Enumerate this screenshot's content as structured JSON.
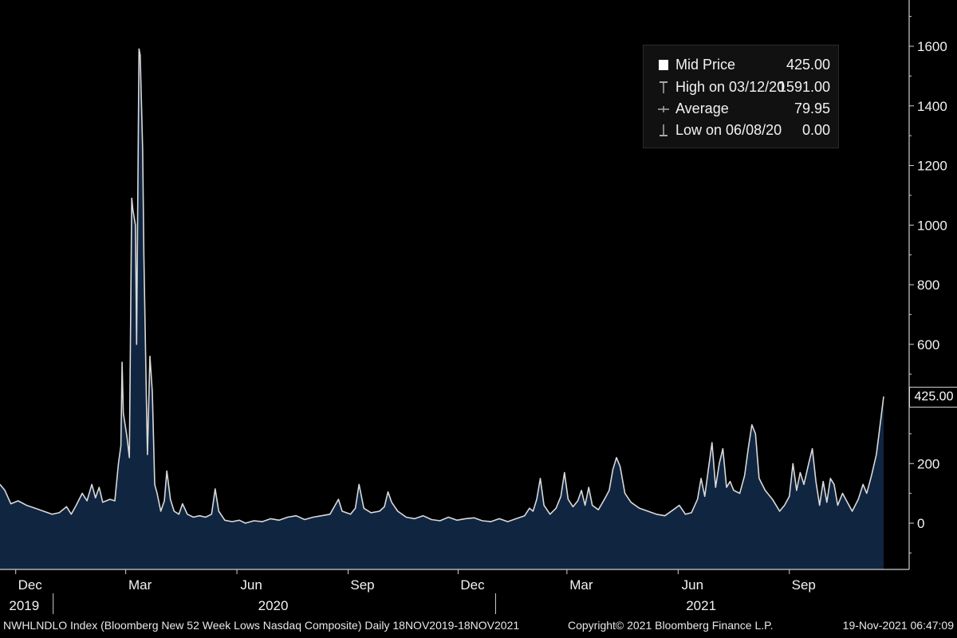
{
  "chart_data": {
    "type": "area",
    "x_range": [
      "2019-11-18",
      "2021-11-18"
    ],
    "ylim": [
      -160,
      1750
    ],
    "yticks": [
      0,
      200,
      400,
      600,
      800,
      1000,
      1200,
      1400,
      1600
    ],
    "ytick_labels": [
      "0",
      "200",
      "",
      "600",
      "800",
      "1000",
      "1200",
      "1400",
      "1600"
    ],
    "x_month_labels": [
      {
        "date": "2019-12-01",
        "label": "Dec"
      },
      {
        "date": "2020-03-01",
        "label": "Mar"
      },
      {
        "date": "2020-06-01",
        "label": "Jun"
      },
      {
        "date": "2020-09-01",
        "label": "Sep"
      },
      {
        "date": "2020-12-01",
        "label": "Dec"
      },
      {
        "date": "2021-03-01",
        "label": "Mar"
      },
      {
        "date": "2021-06-01",
        "label": "Jun"
      },
      {
        "date": "2021-09-01",
        "label": "Sep"
      }
    ],
    "x_year_labels": [
      {
        "date": "2019-12-08",
        "label": "2019"
      },
      {
        "date": "2020-07-01",
        "label": "2020"
      },
      {
        "date": "2021-06-20",
        "label": "2021"
      }
    ],
    "points": [
      [
        "2019-11-18",
        130
      ],
      [
        "2019-11-22",
        110
      ],
      [
        "2019-11-27",
        65
      ],
      [
        "2019-12-03",
        75
      ],
      [
        "2019-12-10",
        60
      ],
      [
        "2019-12-17",
        50
      ],
      [
        "2019-12-24",
        40
      ],
      [
        "2019-12-31",
        30
      ],
      [
        "2020-01-06",
        35
      ],
      [
        "2020-01-12",
        55
      ],
      [
        "2020-01-16",
        30
      ],
      [
        "2020-01-20",
        60
      ],
      [
        "2020-01-25",
        100
      ],
      [
        "2020-01-29",
        75
      ],
      [
        "2020-02-02",
        130
      ],
      [
        "2020-02-05",
        85
      ],
      [
        "2020-02-08",
        120
      ],
      [
        "2020-02-11",
        70
      ],
      [
        "2020-02-17",
        80
      ],
      [
        "2020-02-21",
        75
      ],
      [
        "2020-02-24",
        200
      ],
      [
        "2020-02-26",
        260
      ],
      [
        "2020-02-27",
        540
      ],
      [
        "2020-02-28",
        370
      ],
      [
        "2020-03-02",
        290
      ],
      [
        "2020-03-04",
        220
      ],
      [
        "2020-03-06",
        1090
      ],
      [
        "2020-03-07",
        1050
      ],
      [
        "2020-03-09",
        1000
      ],
      [
        "2020-03-10",
        600
      ],
      [
        "2020-03-12",
        1591
      ],
      [
        "2020-03-13",
        1570
      ],
      [
        "2020-03-15",
        1250
      ],
      [
        "2020-03-16",
        900
      ],
      [
        "2020-03-18",
        440
      ],
      [
        "2020-03-19",
        230
      ],
      [
        "2020-03-21",
        560
      ],
      [
        "2020-03-23",
        440
      ],
      [
        "2020-03-25",
        130
      ],
      [
        "2020-03-27",
        100
      ],
      [
        "2020-03-30",
        40
      ],
      [
        "2020-04-02",
        75
      ],
      [
        "2020-04-04",
        175
      ],
      [
        "2020-04-07",
        80
      ],
      [
        "2020-04-10",
        40
      ],
      [
        "2020-04-14",
        30
      ],
      [
        "2020-04-17",
        65
      ],
      [
        "2020-04-21",
        30
      ],
      [
        "2020-04-26",
        20
      ],
      [
        "2020-05-01",
        25
      ],
      [
        "2020-05-06",
        20
      ],
      [
        "2020-05-11",
        30
      ],
      [
        "2020-05-14",
        115
      ],
      [
        "2020-05-17",
        40
      ],
      [
        "2020-05-22",
        10
      ],
      [
        "2020-05-28",
        5
      ],
      [
        "2020-06-03",
        10
      ],
      [
        "2020-06-08",
        0
      ],
      [
        "2020-06-15",
        8
      ],
      [
        "2020-06-22",
        5
      ],
      [
        "2020-06-29",
        15
      ],
      [
        "2020-07-06",
        10
      ],
      [
        "2020-07-13",
        20
      ],
      [
        "2020-07-20",
        25
      ],
      [
        "2020-07-27",
        12
      ],
      [
        "2020-08-03",
        20
      ],
      [
        "2020-08-10",
        25
      ],
      [
        "2020-08-17",
        30
      ],
      [
        "2020-08-24",
        80
      ],
      [
        "2020-08-27",
        40
      ],
      [
        "2020-09-03",
        30
      ],
      [
        "2020-09-07",
        50
      ],
      [
        "2020-09-10",
        130
      ],
      [
        "2020-09-14",
        50
      ],
      [
        "2020-09-20",
        35
      ],
      [
        "2020-09-27",
        40
      ],
      [
        "2020-10-01",
        55
      ],
      [
        "2020-10-04",
        105
      ],
      [
        "2020-10-07",
        70
      ],
      [
        "2020-10-12",
        40
      ],
      [
        "2020-10-19",
        20
      ],
      [
        "2020-10-26",
        15
      ],
      [
        "2020-11-02",
        25
      ],
      [
        "2020-11-09",
        12
      ],
      [
        "2020-11-16",
        8
      ],
      [
        "2020-11-23",
        20
      ],
      [
        "2020-11-30",
        10
      ],
      [
        "2020-12-07",
        15
      ],
      [
        "2020-12-14",
        18
      ],
      [
        "2020-12-21",
        8
      ],
      [
        "2020-12-28",
        5
      ],
      [
        "2021-01-04",
        15
      ],
      [
        "2021-01-11",
        5
      ],
      [
        "2021-01-18",
        15
      ],
      [
        "2021-01-25",
        25
      ],
      [
        "2021-01-29",
        50
      ],
      [
        "2021-02-01",
        40
      ],
      [
        "2021-02-04",
        80
      ],
      [
        "2021-02-07",
        150
      ],
      [
        "2021-02-10",
        60
      ],
      [
        "2021-02-15",
        30
      ],
      [
        "2021-02-20",
        50
      ],
      [
        "2021-02-24",
        90
      ],
      [
        "2021-02-27",
        170
      ],
      [
        "2021-03-02",
        80
      ],
      [
        "2021-03-06",
        55
      ],
      [
        "2021-03-10",
        75
      ],
      [
        "2021-03-13",
        110
      ],
      [
        "2021-03-16",
        60
      ],
      [
        "2021-03-19",
        120
      ],
      [
        "2021-03-22",
        60
      ],
      [
        "2021-03-27",
        45
      ],
      [
        "2021-04-01",
        80
      ],
      [
        "2021-04-05",
        110
      ],
      [
        "2021-04-08",
        180
      ],
      [
        "2021-04-11",
        220
      ],
      [
        "2021-04-14",
        190
      ],
      [
        "2021-04-18",
        100
      ],
      [
        "2021-04-23",
        70
      ],
      [
        "2021-04-30",
        50
      ],
      [
        "2021-05-07",
        40
      ],
      [
        "2021-05-14",
        30
      ],
      [
        "2021-05-21",
        25
      ],
      [
        "2021-05-28",
        45
      ],
      [
        "2021-06-02",
        60
      ],
      [
        "2021-06-07",
        30
      ],
      [
        "2021-06-12",
        35
      ],
      [
        "2021-06-17",
        80
      ],
      [
        "2021-06-20",
        150
      ],
      [
        "2021-06-23",
        90
      ],
      [
        "2021-06-26",
        180
      ],
      [
        "2021-06-29",
        270
      ],
      [
        "2021-07-02",
        120
      ],
      [
        "2021-07-05",
        200
      ],
      [
        "2021-07-08",
        250
      ],
      [
        "2021-07-11",
        120
      ],
      [
        "2021-07-14",
        140
      ],
      [
        "2021-07-17",
        110
      ],
      [
        "2021-07-22",
        100
      ],
      [
        "2021-07-26",
        160
      ],
      [
        "2021-07-29",
        250
      ],
      [
        "2021-08-01",
        330
      ],
      [
        "2021-08-04",
        300
      ],
      [
        "2021-08-07",
        150
      ],
      [
        "2021-08-12",
        110
      ],
      [
        "2021-08-18",
        80
      ],
      [
        "2021-08-24",
        40
      ],
      [
        "2021-08-28",
        60
      ],
      [
        "2021-09-01",
        90
      ],
      [
        "2021-09-04",
        200
      ],
      [
        "2021-09-07",
        110
      ],
      [
        "2021-09-10",
        170
      ],
      [
        "2021-09-13",
        130
      ],
      [
        "2021-09-17",
        200
      ],
      [
        "2021-09-20",
        250
      ],
      [
        "2021-09-23",
        140
      ],
      [
        "2021-09-26",
        60
      ],
      [
        "2021-09-29",
        140
      ],
      [
        "2021-10-02",
        70
      ],
      [
        "2021-10-05",
        150
      ],
      [
        "2021-10-08",
        130
      ],
      [
        "2021-10-11",
        60
      ],
      [
        "2021-10-15",
        100
      ],
      [
        "2021-10-19",
        70
      ],
      [
        "2021-10-23",
        40
      ],
      [
        "2021-10-28",
        80
      ],
      [
        "2021-11-01",
        130
      ],
      [
        "2021-11-04",
        100
      ],
      [
        "2021-11-08",
        160
      ],
      [
        "2021-11-12",
        230
      ],
      [
        "2021-11-16",
        360
      ],
      [
        "2021-11-18",
        425
      ]
    ],
    "current_value_label": "425.00",
    "grid": false,
    "line_color": "#d9d9d9",
    "fill_color": "#102540"
  },
  "legend": {
    "position": "top-right",
    "rows": [
      {
        "icon": "mid-price-icon",
        "label": "Mid Price",
        "value": "425.00"
      },
      {
        "icon": "high-marker-icon",
        "label": "High on 03/12/20",
        "value": "1591.00"
      },
      {
        "icon": "average-marker-icon",
        "label": "Average",
        "value": "79.95"
      },
      {
        "icon": "low-marker-icon",
        "label": "Low on 06/08/20",
        "value": "0.00"
      }
    ]
  },
  "footer": {
    "left": "NWHLNDLO Index (Bloomberg New 52 Week Lows Nasdaq Composite)  Daily 18NOV2019-18NOV2021",
    "middle": "Copyright© 2021 Bloomberg Finance L.P.",
    "right": "19-Nov-2021 06:47:09"
  },
  "colors": {
    "background": "#000000",
    "axis": "#cfcfcf",
    "text": "#f2f2f2"
  }
}
